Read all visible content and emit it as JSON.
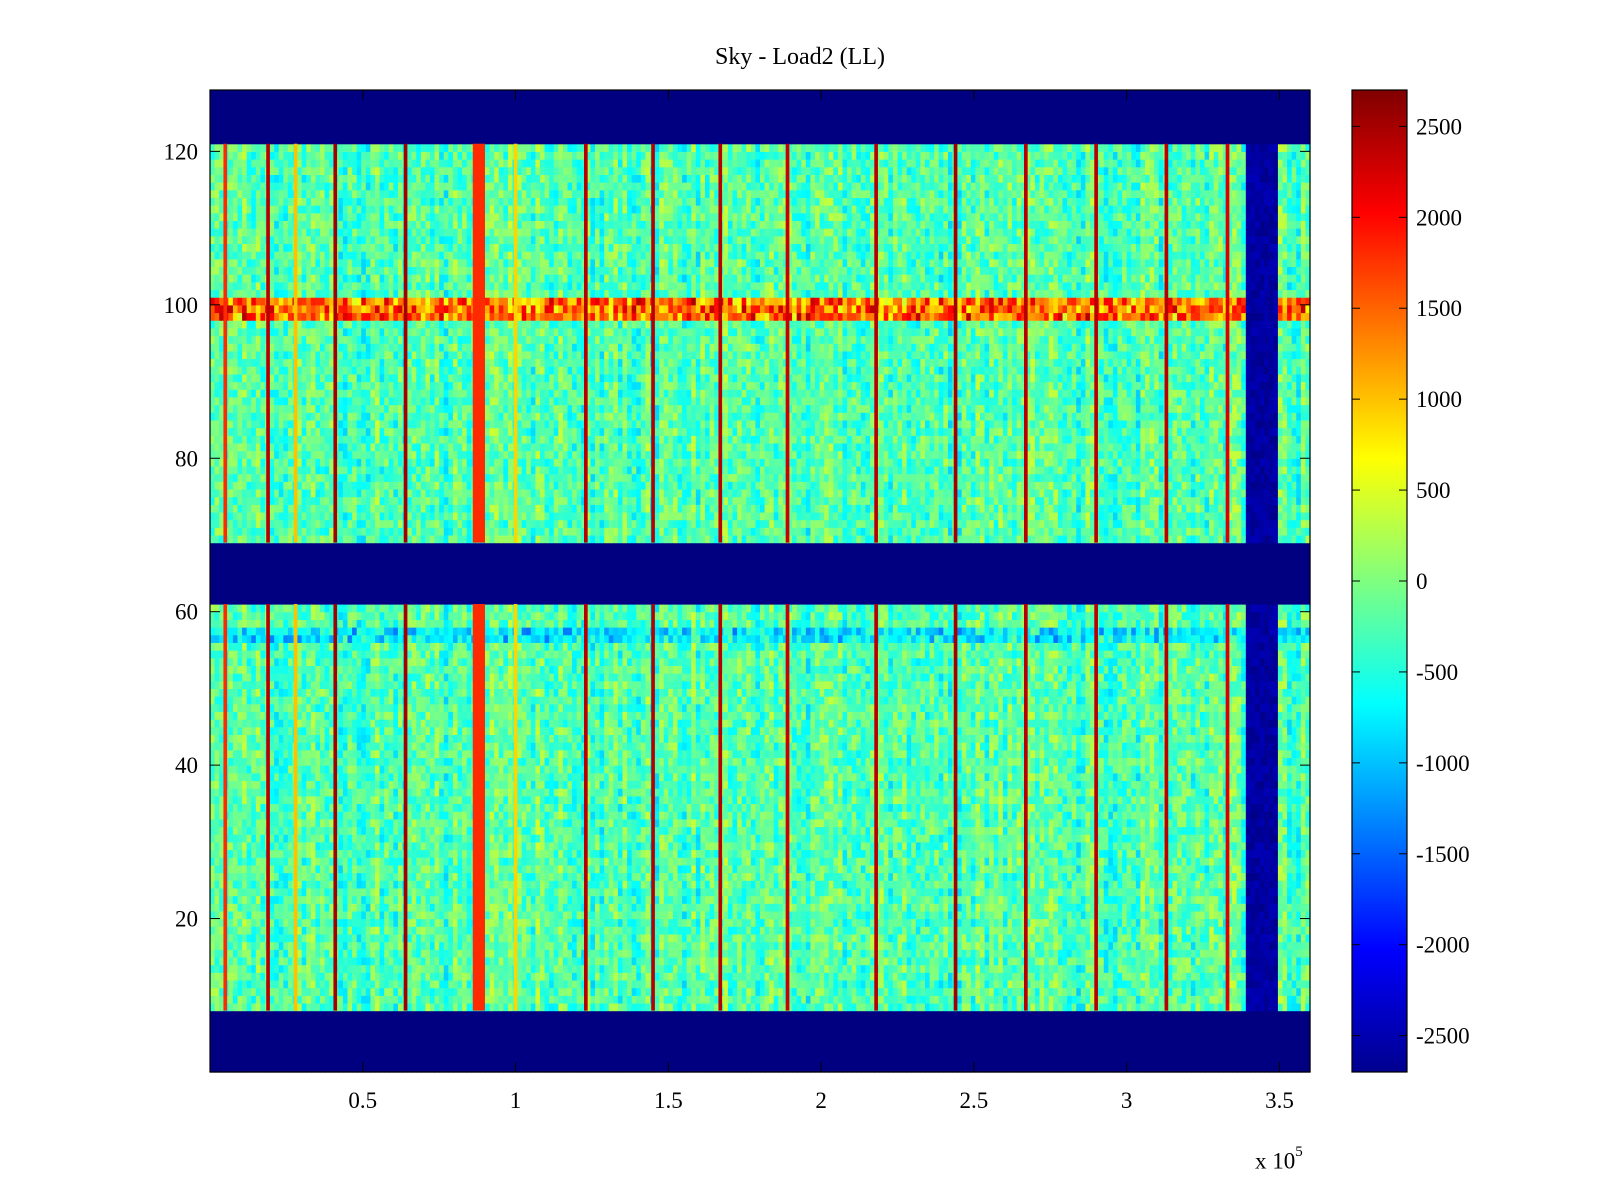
{
  "chart_data": {
    "type": "heatmap",
    "title": "Sky - Load2 (LL)",
    "xlabel": "",
    "ylabel": "",
    "x_exponent_label": "x 10",
    "x_exponent_power": "5",
    "xlim": [
      0,
      3.6
    ],
    "ylim": [
      0,
      128
    ],
    "x_ticks": [
      0.5,
      1,
      1.5,
      2,
      2.5,
      3,
      3.5
    ],
    "x_tick_labels": [
      "0.5",
      "1",
      "1.5",
      "2",
      "2.5",
      "3",
      "3.5"
    ],
    "y_ticks": [
      20,
      40,
      60,
      80,
      100,
      120
    ],
    "y_tick_labels": [
      "20",
      "40",
      "60",
      "80",
      "100",
      "120"
    ],
    "colormap": "jet",
    "clim": [
      -2700,
      2700
    ],
    "colorbar_ticks": [
      2500,
      2000,
      1500,
      1000,
      500,
      0,
      -500,
      -1000,
      -1500,
      -2000,
      -2500
    ],
    "colorbar_tick_labels": [
      "2500",
      "2000",
      "1500",
      "1000",
      "500",
      "0",
      "-500",
      "-1000",
      "-1500",
      "-2000",
      "-2500"
    ],
    "masked_rows": [
      [
        0,
        8
      ],
      [
        61,
        69
      ],
      [
        121,
        128
      ]
    ],
    "masked_value": -2700,
    "masked_column_range": [
      3.39,
      3.5
    ],
    "background_level": -250,
    "vertical_stripes": [
      {
        "x": 0.05,
        "value": 1800
      },
      {
        "x": 0.19,
        "value": 2400
      },
      {
        "x": 0.28,
        "value": 1000
      },
      {
        "x": 0.41,
        "value": 2500
      },
      {
        "x": 0.64,
        "value": 2500
      },
      {
        "x": 0.88,
        "value": 1800,
        "width": 0.04
      },
      {
        "x": 1.0,
        "value": 900
      },
      {
        "x": 1.23,
        "value": 2400
      },
      {
        "x": 1.45,
        "value": 2400
      },
      {
        "x": 1.67,
        "value": 2400
      },
      {
        "x": 1.89,
        "value": 2300
      },
      {
        "x": 2.18,
        "value": 2400
      },
      {
        "x": 2.44,
        "value": 2500
      },
      {
        "x": 2.67,
        "value": 2400
      },
      {
        "x": 2.9,
        "value": 2400
      },
      {
        "x": 3.13,
        "value": 2400
      },
      {
        "x": 3.33,
        "value": 2200
      }
    ],
    "horizontal_stripes": [
      {
        "y": 99.5,
        "value": 1700,
        "height": 1.5
      },
      {
        "y": 57,
        "value": -900,
        "height": 1
      }
    ]
  },
  "colors": {
    "masked": "#00008f",
    "background": "#ffffff",
    "axis": "#000000"
  }
}
